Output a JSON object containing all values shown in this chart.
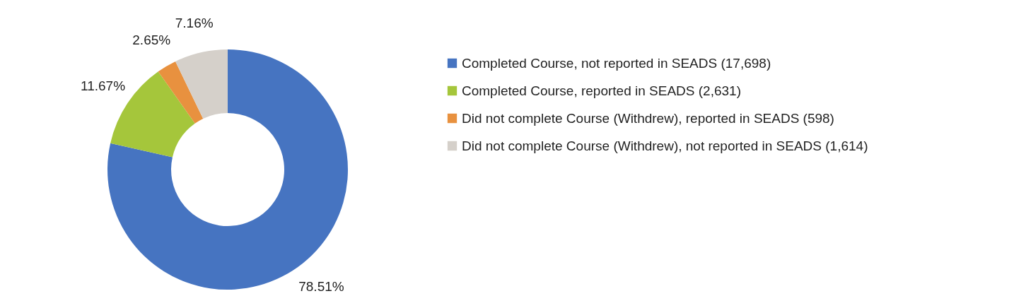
{
  "chart_data": {
    "type": "donut",
    "categories": [
      "Completed Course, not reported in SEADS (17,698)",
      "Completed Course, reported in SEADS (2,631)",
      "Did not complete Course (Withdrew), reported in SEADS (598)",
      "Did not complete Course (Withdrew), not reported in SEADS (1,614)"
    ],
    "values": [
      78.51,
      11.67,
      2.65,
      7.16
    ],
    "colors": [
      "#4674c1",
      "#a5c63b",
      "#e8913f",
      "#d5d0ca"
    ],
    "value_labels": [
      "78.51%",
      "11.67%",
      "2.65%",
      "7.16%"
    ],
    "legend": "right"
  }
}
